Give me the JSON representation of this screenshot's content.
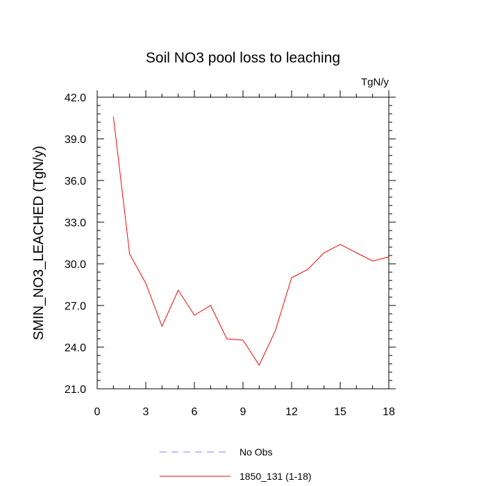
{
  "chart_data": {
    "type": "line",
    "title": "Soil NO3 pool loss to leaching",
    "units": "TgN/y",
    "ylabel": "SMIN_NO3_LEACHED  (TgN/y)",
    "xlabel": "",
    "xlim": [
      0,
      18
    ],
    "ylim": [
      21.0,
      42.0
    ],
    "xticks": [
      0,
      3,
      6,
      9,
      12,
      15,
      18
    ],
    "yticks": [
      21.0,
      24.0,
      27.0,
      30.0,
      33.0,
      36.0,
      39.0,
      42.0
    ],
    "grid": false,
    "legend_position": "bottom-center",
    "series": [
      {
        "name": "1850_131 (1-18)",
        "color": "#ff0000",
        "style": "solid",
        "x": [
          1,
          2,
          3,
          4,
          5,
          6,
          7,
          8,
          9,
          10,
          11,
          12,
          13,
          14,
          15,
          16,
          17,
          18
        ],
        "y": [
          40.6,
          30.7,
          28.6,
          25.5,
          28.1,
          26.3,
          27.0,
          24.6,
          24.5,
          22.7,
          25.2,
          29.0,
          29.6,
          30.8,
          31.4,
          30.8,
          30.2,
          30.5
        ]
      }
    ],
    "legend": [
      {
        "label": "No Obs",
        "color": "#8080ff",
        "style": "dashed"
      },
      {
        "label": "1850_131 (1-18)",
        "color": "#ff0000",
        "style": "solid"
      }
    ]
  }
}
